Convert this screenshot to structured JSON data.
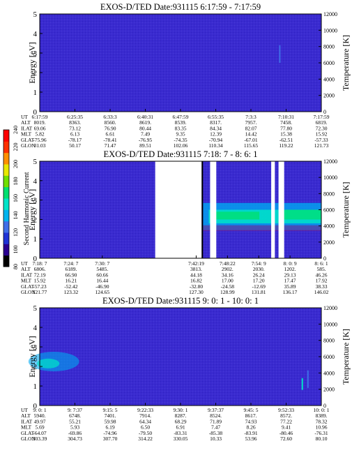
{
  "chart_data": [
    {
      "type": "heatmap",
      "title": "EXOS-D/TED   Date:931115  6:17:59 - 7:17:59",
      "ylabel_left": "Energy [eV]",
      "ylabel_right": "Temperature [K]",
      "ylim": [
        0,
        5
      ],
      "ylim_right": [
        0,
        12000
      ],
      "yticks": [
        "0",
        "1",
        "2",
        "3",
        "4",
        "5"
      ],
      "yticks_right": [
        "0",
        "2000",
        "4000",
        "6000",
        "8000",
        "10000",
        "12000"
      ],
      "gaps": [],
      "row_labels": [
        "UT",
        "ALT",
        "ILAT",
        "MLT",
        "GLAT",
        "GLON"
      ],
      "columns": [
        [
          "6:17:59",
          "8019.",
          "69.06",
          "5.82",
          "-75.96",
          "31.03"
        ],
        [
          "6:25:35",
          "8363.",
          "73.12",
          "6.13",
          "-78.17",
          "50.17"
        ],
        [
          "6:33:3",
          "8560.",
          "76.90",
          "6.61",
          "-78.41",
          "71.47"
        ],
        [
          "6:40:31",
          "8619.",
          "80.44",
          "7.49",
          "-76.95",
          "89.51"
        ],
        [
          "6:47:59",
          "8539.",
          "83.35",
          "9.35",
          "-74.35",
          "102.06"
        ],
        [
          "6:55:35",
          "8317.",
          "84.34",
          "12.39",
          "-70.94",
          "110.34"
        ],
        [
          "7:3:3",
          "7957.",
          "82.07",
          "14.42",
          "-67.01",
          "115.65"
        ],
        [
          "7:10:31",
          "7458.",
          "77.80",
          "15.38",
          "-62.51",
          "119.22"
        ],
        [
          "7:17:59",
          "6819.",
          "72.30",
          "15.92",
          "-57.33",
          "121.73"
        ]
      ]
    },
    {
      "type": "heatmap",
      "title": "EXOS-D/TED   Date:931115  7:18: 7 - 8: 6: 1",
      "ylabel_left": "Energy [eV]",
      "ylabel_right": "Temperature [K]",
      "ylim": [
        0,
        5
      ],
      "ylim_right": [
        0,
        12000
      ],
      "yticks": [
        "0",
        "1",
        "2",
        "3",
        "4",
        "5"
      ],
      "yticks_right": [
        "0",
        "2000",
        "4000",
        "6000",
        "8000",
        "10000",
        "12000"
      ],
      "gaps": [
        [
          0.41,
          0.575
        ],
        [
          0.605,
          0.627
        ],
        [
          0.822,
          0.835
        ],
        [
          0.848,
          0.868
        ]
      ],
      "row_labels": [
        "UT",
        "ALT",
        "ILAT",
        "MLT",
        "GLAT",
        "GLON"
      ],
      "columns": [
        [
          "7:18: 7",
          "6806.",
          "72.19",
          "15.92",
          "-57.23",
          "121.77"
        ],
        [
          "7:24: 7",
          "6189.",
          "66.90",
          "16.21",
          "-52.42",
          "123.32"
        ],
        [
          "7:30: 7",
          "5485.",
          "60.66",
          "16.44",
          "-46.90",
          "124.65"
        ],
        [
          "",
          "",
          "",
          "",
          "",
          ""
        ],
        [
          "",
          "",
          "",
          "",
          "",
          ""
        ],
        [
          "7:42:19",
          "3813.",
          "44.18",
          "16.82",
          "-32.80",
          "127.30"
        ],
        [
          "7:48:22",
          "2902.",
          "34.16",
          "17.00",
          "-24.58",
          "128.99"
        ],
        [
          "7:54: 9",
          "2030.",
          "26.24",
          "17.20",
          "-12.69",
          "131.81"
        ],
        [
          "8: 0: 9",
          "1202.",
          "29.13",
          "17.47",
          "35.89",
          "136.17"
        ],
        [
          "8: 6: 1",
          "585.",
          "46.26",
          "17.92",
          "38.33",
          "146.02"
        ]
      ]
    },
    {
      "type": "heatmap",
      "title": "EXOS-D/TED   Date:931115  9: 0: 1 - 10: 0: 1",
      "ylabel_left": "Energy [eV]",
      "ylabel_right": "Temperature [K]",
      "ylim": [
        0,
        5
      ],
      "ylim_right": [
        0,
        12000
      ],
      "yticks": [
        "0",
        "1",
        "2",
        "3",
        "4",
        "5"
      ],
      "yticks_right": [
        "0",
        "2000",
        "4000",
        "6000",
        "8000",
        "10000",
        "12000"
      ],
      "gaps": [],
      "row_labels": [
        "UT",
        "ALT",
        "ILAT",
        "MLT",
        "GLAT",
        "GLON"
      ],
      "columns": [
        [
          "9: 0: 1",
          "5940.",
          "49.97",
          "5.69",
          "-64.07",
          "303.39"
        ],
        [
          "9: 7:37",
          "6748.",
          "55.21",
          "5.93",
          "-69.86",
          "304.73"
        ],
        [
          "9:15: 5",
          "7401.",
          "59.98",
          "6.19",
          "-74.96",
          "307.70"
        ],
        [
          "9:22:33",
          "7914.",
          "64.34",
          "6.50",
          "-79.50",
          "314.22"
        ],
        [
          "9:30: 1",
          "8287.",
          "68.29",
          "6.91",
          "-83.31",
          "330.05"
        ],
        [
          "9:37:37",
          "8524.",
          "71.89",
          "7.47",
          "-85.38",
          "10.33"
        ],
        [
          "9:45: 5",
          "8617.",
          "74.93",
          "8.26",
          "-83.91",
          "53.96"
        ],
        [
          "9:52:33",
          "8572.",
          "77.22",
          "9.41",
          "-80.46",
          "72.60"
        ],
        [
          "10: 0: 1",
          "8389.",
          "78.32",
          "10.96",
          "-76.31",
          "80.10"
        ]
      ]
    }
  ],
  "colorbar": {
    "label": "Second Harmonic Current",
    "ticks": [
      "80",
      "100",
      "120",
      "140",
      "160",
      "180",
      "200",
      "220",
      "240"
    ],
    "colors": [
      "#000000",
      "#2a0090",
      "#1f33d6",
      "#3f6ee8",
      "#00b4ee",
      "#00e4c8",
      "#00e070",
      "#70e000",
      "#e8e800",
      "#ff9000",
      "#ff3000",
      "#ff0000"
    ]
  }
}
